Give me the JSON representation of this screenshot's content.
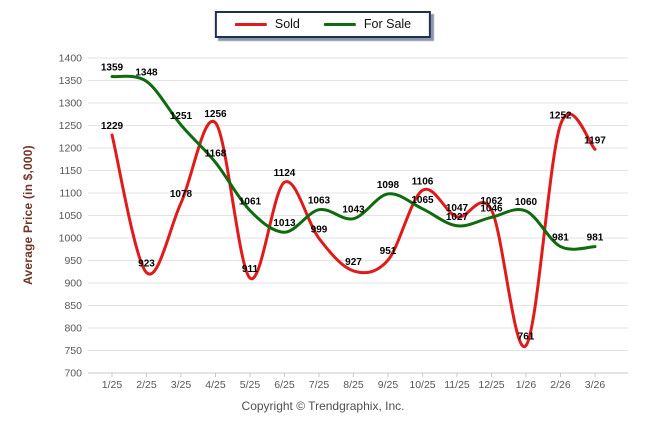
{
  "legend": {
    "items": [
      {
        "label": "Sold"
      },
      {
        "label": "For Sale"
      }
    ]
  },
  "chart_data": {
    "type": "line",
    "categories": [
      "1/25",
      "2/25",
      "3/25",
      "4/25",
      "5/25",
      "6/25",
      "7/25",
      "8/25",
      "9/25",
      "10/25",
      "11/25",
      "12/25",
      "1/26",
      "2/26",
      "3/26"
    ],
    "series": [
      {
        "name": "Sold",
        "color": "#e01b1b",
        "values": [
          1229,
          923,
          1078,
          1256,
          911,
          1124,
          999,
          927,
          951,
          1106,
          1047,
          1062,
          761,
          1252,
          1197
        ]
      },
      {
        "name": "For Sale",
        "color": "#0e6b0e",
        "values": [
          1359,
          1348,
          1251,
          1168,
          1061,
          1013,
          1063,
          1043,
          1098,
          1065,
          1027,
          1046,
          1060,
          981,
          981
        ]
      }
    ],
    "title": "",
    "xlabel": "",
    "ylabel": "Average Price (in $,000)",
    "ylim": [
      700,
      1400
    ],
    "ytick_step": 50,
    "grid": "horizontal",
    "legend_position": "top-center",
    "data_labels": true,
    "line_style": "smooth"
  },
  "footer": {
    "copyright": "Copyright © Trendgraphix, Inc."
  },
  "colors": {
    "grid_line": "#e3e3e3",
    "axis_line": "#c9c9c9",
    "tick_text": "#54565b",
    "data_label": "#000000",
    "ylabel_text": "#713628",
    "legend_border": "#1c3051"
  }
}
